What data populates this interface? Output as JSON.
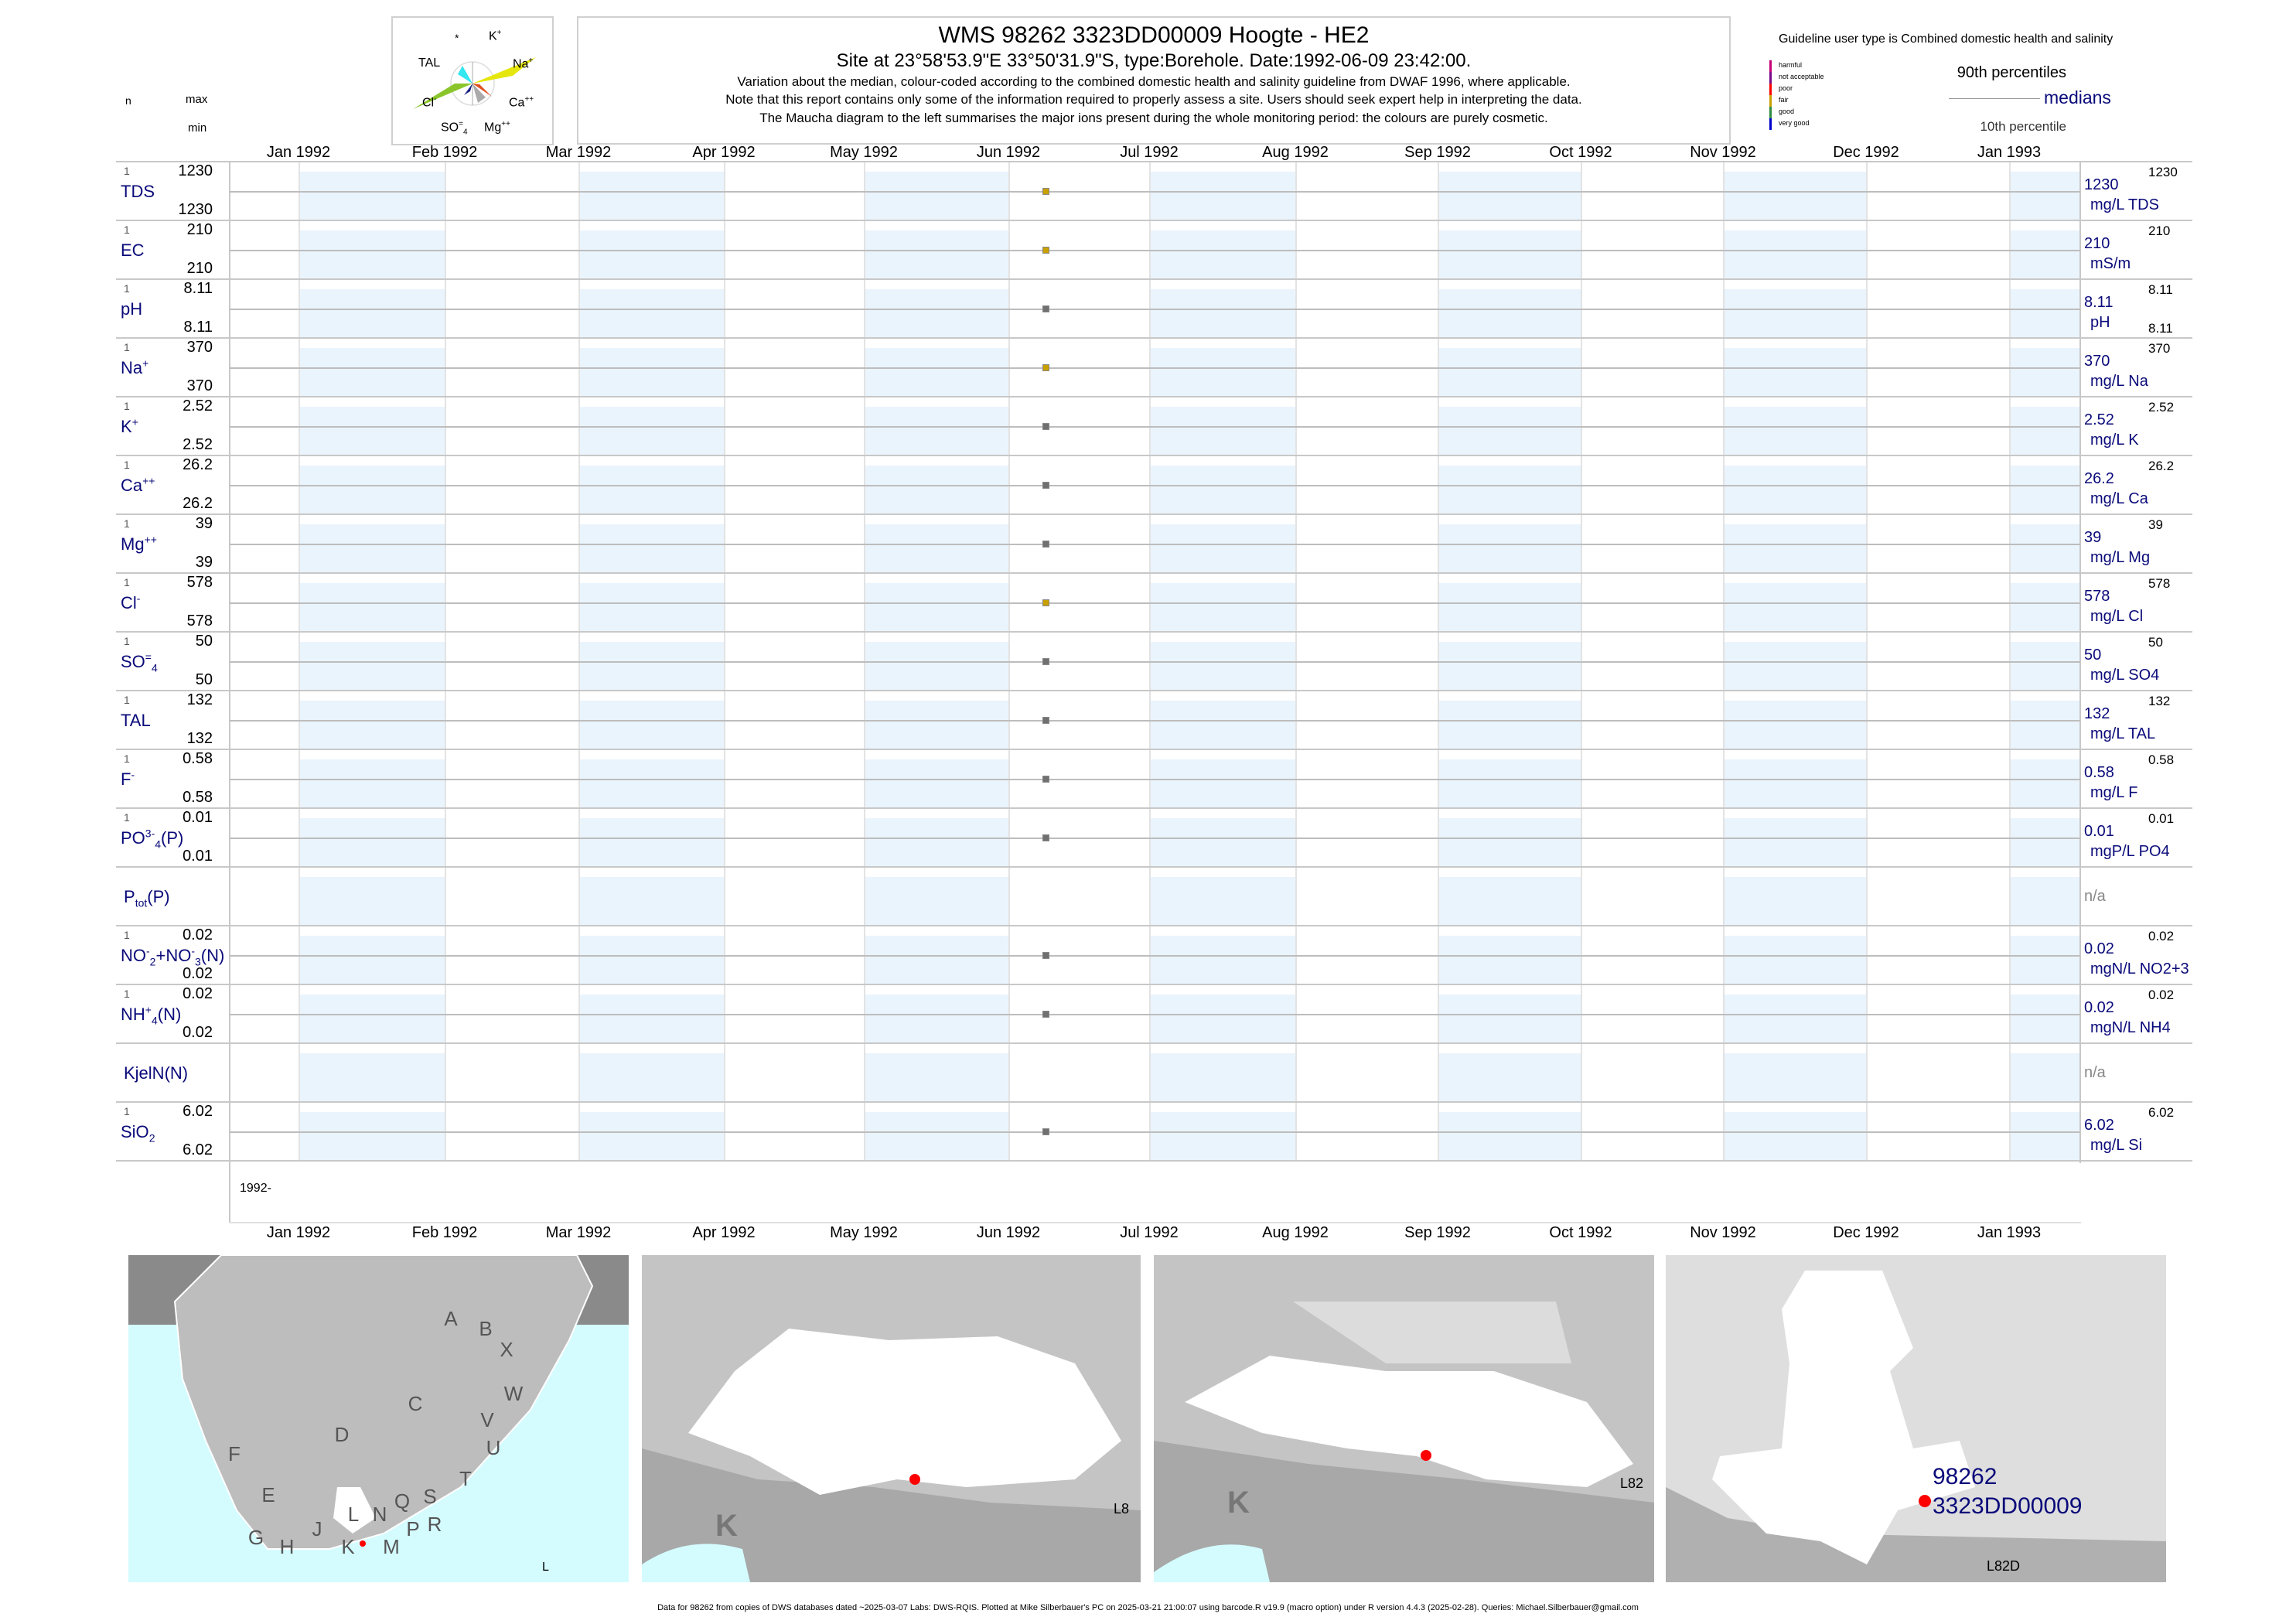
{
  "header": {
    "title": "WMS 98262 3323DD00009 Hoogte - HE2",
    "subtitle": "Site at 23°58'53.9\"E 33°50'31.9\"S, type:Borehole. Date:1992-06-09 23:42:00.",
    "note1": "Variation about the median,  colour-coded according to the combined domestic health and salinity guideline from DWAF 1996, where applicable.",
    "note2": "Note that this report contains only some of the information required to properly assess a site. Users should seek expert help in interpreting the data.",
    "note3": "The Maucha diagram to the left summarises the major ions present during the whole monitoring period: the colours are purely cosmetic."
  },
  "column_heads": {
    "n": "n",
    "max": "max",
    "min": "min"
  },
  "maucha": {
    "star": "*",
    "k": "K",
    "k_sup": "+",
    "tal": "TAL",
    "na": "Na",
    "na_sup": "+",
    "cl": "Cl",
    "cl_sup": "-",
    "ca": "Ca",
    "ca_sup": "++",
    "so4": "SO",
    "so4_sub": "4",
    "so4_sup": "=",
    "mg": "Mg",
    "mg_sup": "++"
  },
  "legend": {
    "guideline": "Guideline user type is Combined domestic health and salinity",
    "classes": [
      {
        "label": "harmful",
        "color": "#c8007a"
      },
      {
        "label": "not acceptable",
        "color": "#7a0a8a"
      },
      {
        "label": "poor",
        "color": "#ff0000"
      },
      {
        "label": "fair",
        "color": "#c8a000"
      },
      {
        "label": "good",
        "color": "#2e8b40"
      },
      {
        "label": "very good",
        "color": "#0000cc"
      }
    ],
    "p90": "90th percentiles",
    "medians": "medians",
    "p10": "10th percentile"
  },
  "chart_data": {
    "type": "scatter",
    "title": "WMS 98262 3323DD00009 Hoogte - HE2",
    "x_ticks": [
      "Jan 1992",
      "Feb 1992",
      "Mar 1992",
      "Apr 1992",
      "May 1992",
      "Jun 1992",
      "Jul 1992",
      "Aug 1992",
      "Sep 1992",
      "Oct 1992",
      "Nov 1992",
      "Dec 1992",
      "Jan 1993"
    ],
    "x_range": [
      "1991-12-15",
      "1993-01-15"
    ],
    "sample_date": "1992-06-09",
    "year_label": "1992-",
    "series": [
      {
        "name": "TDS",
        "label": [
          {
            "t": "TDS"
          }
        ],
        "n": "1",
        "max": "1230",
        "min": "1230",
        "median": "1230",
        "p90": "1230",
        "unit": "mg/L TDS",
        "value": 1230,
        "color": "#c8a000"
      },
      {
        "name": "EC",
        "label": [
          {
            "t": "EC"
          }
        ],
        "n": "1",
        "max": "210",
        "min": "210",
        "median": "210",
        "p90": "210",
        "unit": "mS/m",
        "value": 210,
        "color": "#c8a000"
      },
      {
        "name": "pH",
        "label": [
          {
            "t": "pH"
          }
        ],
        "n": "1",
        "max": "8.11",
        "min": "8.11",
        "median": "8.11",
        "p90": "8.11",
        "p10": "8.11",
        "unit": "pH",
        "value": 8.11,
        "color": "#707070"
      },
      {
        "name": "Na",
        "label": [
          {
            "t": "Na"
          },
          {
            "t": "+",
            "k": "sup"
          }
        ],
        "n": "1",
        "max": "370",
        "min": "370",
        "median": "370",
        "p90": "370",
        "unit": "mg/L Na",
        "value": 370,
        "color": "#c8a000"
      },
      {
        "name": "K",
        "label": [
          {
            "t": "K"
          },
          {
            "t": "+",
            "k": "sup"
          }
        ],
        "n": "1",
        "max": "2.52",
        "min": "2.52",
        "median": "2.52",
        "p90": "2.52",
        "unit": "mg/L K",
        "value": 2.52,
        "color": "#707070"
      },
      {
        "name": "Ca",
        "label": [
          {
            "t": "Ca"
          },
          {
            "t": "++",
            "k": "sup"
          }
        ],
        "n": "1",
        "max": "26.2",
        "min": "26.2",
        "median": "26.2",
        "p90": "26.2",
        "unit": "mg/L Ca",
        "value": 26.2,
        "color": "#707070"
      },
      {
        "name": "Mg",
        "label": [
          {
            "t": "Mg"
          },
          {
            "t": "++",
            "k": "sup"
          }
        ],
        "n": "1",
        "max": "39",
        "min": "39",
        "median": "39",
        "p90": "39",
        "unit": "mg/L Mg",
        "value": 39,
        "color": "#707070"
      },
      {
        "name": "Cl",
        "label": [
          {
            "t": "Cl"
          },
          {
            "t": "-",
            "k": "sup"
          }
        ],
        "n": "1",
        "max": "578",
        "min": "578",
        "median": "578",
        "p90": "578",
        "unit": "mg/L Cl",
        "value": 578,
        "color": "#c8a000"
      },
      {
        "name": "SO4",
        "label": [
          {
            "t": "SO"
          },
          {
            "t": "=",
            "k": "sup"
          },
          {
            "t": "4",
            "k": "sub"
          }
        ],
        "n": "1",
        "max": "50",
        "min": "50",
        "median": "50",
        "p90": "50",
        "unit": "mg/L SO4",
        "value": 50,
        "color": "#707070"
      },
      {
        "name": "TAL",
        "label": [
          {
            "t": "TAL"
          }
        ],
        "n": "1",
        "max": "132",
        "min": "132",
        "median": "132",
        "p90": "132",
        "unit": "mg/L TAL",
        "value": 132,
        "color": "#707070"
      },
      {
        "name": "F",
        "label": [
          {
            "t": "F"
          },
          {
            "t": "-",
            "k": "sup"
          }
        ],
        "n": "1",
        "max": "0.58",
        "min": "0.58",
        "median": "0.58",
        "p90": "0.58",
        "unit": "mg/L F",
        "value": 0.58,
        "color": "#707070"
      },
      {
        "name": "PO4",
        "label": [
          {
            "t": "PO"
          },
          {
            "t": "3-",
            "k": "sup"
          },
          {
            "t": "4",
            "k": "sub"
          },
          {
            "t": "(P)"
          }
        ],
        "n": "1",
        "max": "0.01",
        "min": "0.01",
        "median": "0.01",
        "p90": "0.01",
        "unit": "mgP/L PO4",
        "value": 0.01,
        "color": "#707070"
      },
      {
        "name": "Ptot",
        "label": [
          {
            "t": "P"
          },
          {
            "t": "tot",
            "k": "sub"
          },
          {
            "t": "(P)"
          }
        ],
        "na": "n/a"
      },
      {
        "name": "NO2+3",
        "label": [
          {
            "t": "NO"
          },
          {
            "t": "-",
            "k": "sup"
          },
          {
            "t": "2",
            "k": "sub"
          },
          {
            "t": "+NO"
          },
          {
            "t": "-",
            "k": "sup"
          },
          {
            "t": "3",
            "k": "sub"
          },
          {
            "t": "(N)"
          }
        ],
        "n": "1",
        "max": "0.02",
        "min": "0.02",
        "median": "0.02",
        "p90": "0.02",
        "unit": "mgN/L NO2+3",
        "value": 0.02,
        "color": "#707070"
      },
      {
        "name": "NH4",
        "label": [
          {
            "t": "NH"
          },
          {
            "t": "+",
            "k": "sup"
          },
          {
            "t": "4",
            "k": "sub"
          },
          {
            "t": "(N)"
          }
        ],
        "n": "1",
        "max": "0.02",
        "min": "0.02",
        "median": "0.02",
        "p90": "0.02",
        "unit": "mgN/L NH4",
        "value": 0.02,
        "color": "#707070"
      },
      {
        "name": "KjelN",
        "label": [
          {
            "t": "KjelN(N)"
          }
        ],
        "na": "n/a"
      },
      {
        "name": "SiO2",
        "label": [
          {
            "t": "SiO"
          },
          {
            "t": "2",
            "k": "sub"
          }
        ],
        "n": "1",
        "max": "6.02",
        "min": "6.02",
        "median": "6.02",
        "p90": "6.02",
        "unit": "mg/L Si",
        "value": 6.02,
        "color": "#707070"
      }
    ]
  },
  "maps": {
    "map1": {
      "letters": [
        "A",
        "B",
        "X",
        "W",
        "C",
        "V",
        "U",
        "D",
        "T",
        "F",
        "E",
        "N",
        "Q",
        "S",
        "R",
        "L",
        "G",
        "H",
        "J",
        "K",
        "M",
        "P"
      ],
      "corner": "L"
    },
    "map2": {
      "region": "K",
      "corner": "L8"
    },
    "map3": {
      "region": "K",
      "corner": "L82"
    },
    "map4": {
      "site_id": "98262",
      "site_code": "3323DD00009",
      "corner": "L82D"
    }
  },
  "footer": "Data for 98262 from copies of DWS databases dated ~2025-03-07 Labs: DWS-RQIS. Plotted at Mike Silberbauer's PC on 2025-03-21 21:00:07 using barcode.R v19.9 (macro option) under R version 4.4.3 (2025-02-28). Queries: Michael.Silberbauer@gmail.com"
}
